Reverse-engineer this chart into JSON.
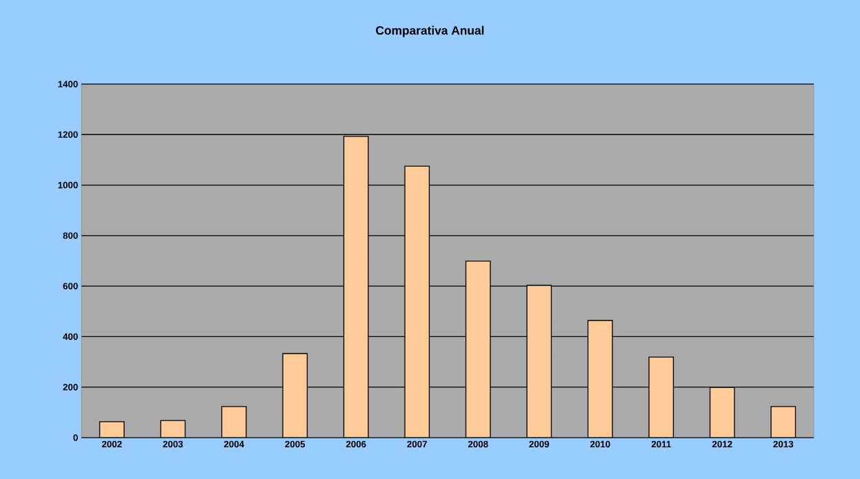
{
  "chart_data": {
    "type": "bar",
    "title": "Comparativa Anual",
    "categories": [
      "2002",
      "2003",
      "2004",
      "2005",
      "2006",
      "2007",
      "2008",
      "2009",
      "2010",
      "2011",
      "2012",
      "2013"
    ],
    "values": [
      63,
      68,
      123,
      333,
      1193,
      1075,
      699,
      603,
      464,
      319,
      199,
      123
    ],
    "color": "#ffcc99",
    "ylim": [
      0,
      1400
    ],
    "yticks": [
      0,
      200,
      400,
      600,
      800,
      1000,
      1200,
      1400
    ],
    "grid": "y"
  }
}
